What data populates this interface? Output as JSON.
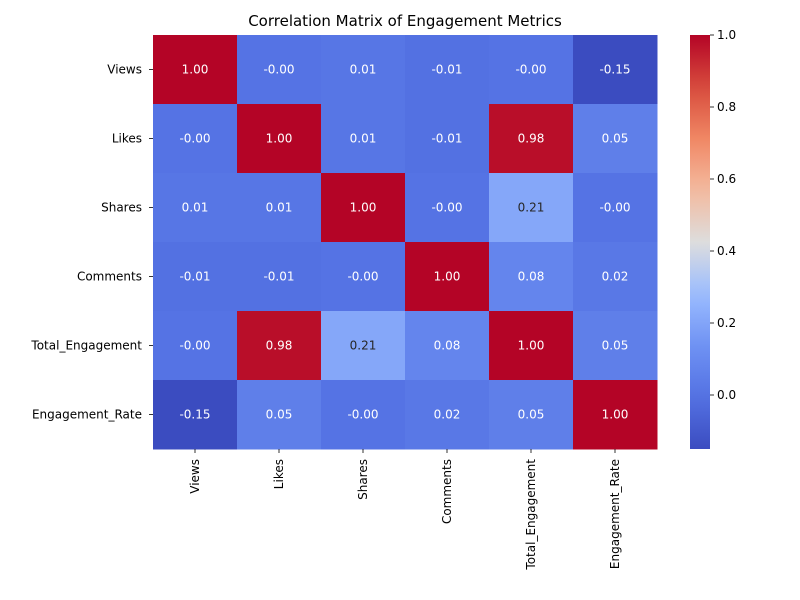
{
  "chart_data": {
    "type": "heatmap",
    "title": "Correlation Matrix of Engagement Metrics",
    "row_labels": [
      "Views",
      "Likes",
      "Shares",
      "Comments",
      "Total_Engagement",
      "Engagement_Rate"
    ],
    "col_labels": [
      "Views",
      "Likes",
      "Shares",
      "Comments",
      "Total_Engagement",
      "Engagement_Rate"
    ],
    "values": [
      [
        1.0,
        -0.0,
        0.01,
        -0.01,
        -0.0,
        -0.15
      ],
      [
        -0.0,
        1.0,
        0.01,
        -0.01,
        0.98,
        0.05
      ],
      [
        0.01,
        0.01,
        1.0,
        -0.0,
        0.21,
        -0.0
      ],
      [
        -0.01,
        -0.01,
        -0.0,
        1.0,
        0.08,
        0.02
      ],
      [
        -0.0,
        0.98,
        0.21,
        0.08,
        1.0,
        0.05
      ],
      [
        -0.15,
        0.05,
        -0.0,
        0.02,
        0.05,
        1.0
      ]
    ],
    "cell_text": [
      [
        "1.00",
        "-0.00",
        "0.01",
        "-0.01",
        "-0.00",
        "-0.15"
      ],
      [
        "-0.00",
        "1.00",
        "0.01",
        "-0.01",
        "0.98",
        "0.05"
      ],
      [
        "0.01",
        "0.01",
        "1.00",
        "-0.00",
        "0.21",
        "-0.00"
      ],
      [
        "-0.01",
        "-0.01",
        "-0.00",
        "1.00",
        "0.08",
        "0.02"
      ],
      [
        "-0.00",
        "0.98",
        "0.21",
        "0.08",
        "1.00",
        "0.05"
      ],
      [
        "-0.15",
        "0.05",
        "-0.00",
        "0.02",
        "0.05",
        "1.00"
      ]
    ],
    "colormap": "coolwarm",
    "vmin": -0.15,
    "vmax": 1.0,
    "colorbar_ticks": [
      "0.0",
      "0.2",
      "0.4",
      "0.6",
      "0.8",
      "1.0"
    ],
    "colorbar_tick_values": [
      0.0,
      0.2,
      0.4,
      0.6,
      0.8,
      1.0
    ],
    "colors": {
      "cold": "#3b4cc0",
      "neutral": "#dddddd",
      "warm": "#b40426"
    }
  }
}
